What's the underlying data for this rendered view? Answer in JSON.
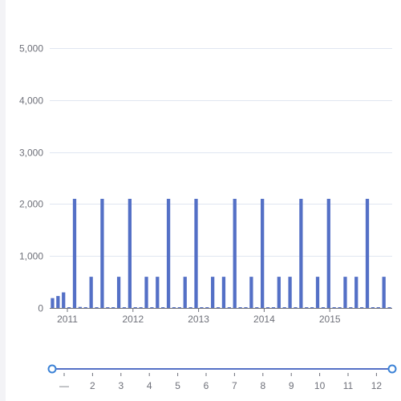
{
  "chart_data": {
    "type": "bar",
    "title": "",
    "xlabel": "",
    "ylabel": "",
    "ylim": [
      0,
      5000
    ],
    "yticks": [
      "0",
      "1,000",
      "2,000",
      "3,000",
      "4,000",
      "5,000"
    ],
    "year_labels": [
      "2011",
      "2012",
      "2013",
      "2014",
      "2015"
    ],
    "grid": true,
    "bar_color": "#5470c6",
    "values": [
      190,
      230,
      300,
      15,
      2100,
      20,
      15,
      600,
      15,
      2100,
      15,
      15,
      600,
      15,
      2100,
      15,
      15,
      600,
      15,
      600,
      15,
      2100,
      15,
      15,
      600,
      15,
      2100,
      15,
      15,
      600,
      15,
      600,
      15,
      2100,
      15,
      15,
      600,
      15,
      2100,
      15,
      15,
      600,
      15,
      600,
      15,
      2100,
      15,
      15,
      600,
      15,
      2100,
      15,
      15,
      600,
      15,
      600,
      15,
      2100,
      15,
      15,
      600,
      15
    ]
  },
  "slider": {
    "labels": [
      "—",
      "2",
      "3",
      "4",
      "5",
      "6",
      "7",
      "8",
      "9",
      "10",
      "11",
      "12"
    ],
    "track_color": "#5470c6",
    "handle_color": "#3b82d6"
  }
}
